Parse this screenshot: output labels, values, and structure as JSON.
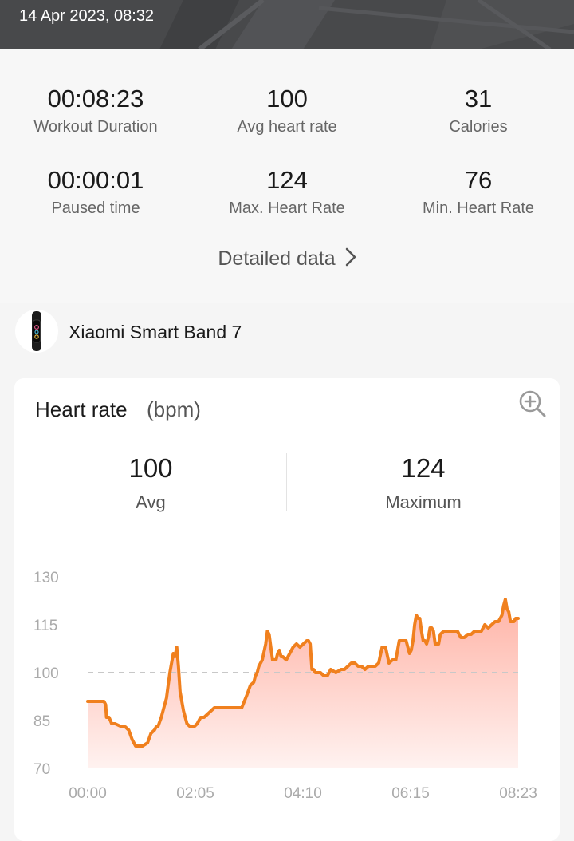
{
  "header": {
    "date": "14 Apr 2023, 08:32"
  },
  "stats": [
    {
      "value": "00:08:23",
      "label": "Workout Duration"
    },
    {
      "value": "100",
      "label": "Avg heart rate"
    },
    {
      "value": "31",
      "label": "Calories"
    },
    {
      "value": "00:00:01",
      "label": "Paused time"
    },
    {
      "value": "124",
      "label": "Max. Heart Rate"
    },
    {
      "value": "76",
      "label": "Min. Heart Rate"
    }
  ],
  "detailed_label": "Detailed data",
  "device": {
    "name": "Xiaomi Smart Band 7",
    "icon": "smart-band-icon"
  },
  "card": {
    "title": "Heart rate",
    "unit": "(bpm)",
    "avg_value": "100",
    "avg_label": "Avg",
    "max_value": "124",
    "max_label": "Maximum"
  },
  "colors": {
    "line": "#f0801e",
    "fill_top": "#ffb3a6",
    "fill_bottom": "#fff2f0",
    "avg_line": "#c8c8c8"
  },
  "chart_data": {
    "type": "area",
    "ylim": [
      70,
      130
    ],
    "yticks": [
      "130",
      "115",
      "100",
      "85",
      "70"
    ],
    "xticks": [
      "00:00",
      "02:05",
      "04:10",
      "06:15",
      "08:23"
    ],
    "x_unit": "seconds",
    "xlim": [
      0,
      503
    ],
    "reference_line": 100,
    "series": [
      {
        "x": [
          0,
          8,
          16,
          19,
          21,
          22,
          25,
          28,
          32,
          40,
          44,
          48,
          52,
          56,
          60,
          64,
          70,
          74,
          78,
          80,
          82,
          86,
          90,
          92,
          94,
          96,
          98,
          100,
          102,
          104,
          106,
          108,
          112,
          116,
          120,
          124,
          128,
          132,
          136,
          140,
          148,
          160,
          172,
          180,
          186,
          190,
          194,
          196,
          198,
          200,
          204,
          208,
          210,
          212,
          214,
          216,
          218,
          220,
          222,
          224,
          226,
          228,
          232,
          236,
          240,
          244,
          248,
          252,
          256,
          258,
          260,
          262,
          264,
          266,
          268,
          272,
          276,
          280,
          284,
          290,
          296,
          300,
          304,
          308,
          312,
          316,
          320,
          324,
          328,
          332,
          336,
          340,
          344,
          348,
          352,
          356,
          360,
          364,
          368,
          372,
          376,
          378,
          380,
          382,
          384,
          386,
          388,
          390,
          392,
          394,
          396,
          398,
          400,
          402,
          404,
          406,
          408,
          410,
          412,
          416,
          420,
          424,
          428,
          432,
          436,
          440,
          444,
          448,
          452,
          456,
          460,
          464,
          468,
          472,
          476,
          480,
          482,
          484,
          486,
          488,
          490,
          492,
          494,
          496,
          498,
          500,
          503
        ],
        "y": [
          91,
          91,
          91,
          91,
          90,
          86,
          86,
          84,
          84,
          83,
          83,
          82,
          79,
          77,
          77,
          77,
          78,
          81,
          82,
          83,
          83,
          86,
          90,
          92,
          96,
          100,
          103,
          106,
          105,
          108,
          102,
          94,
          88,
          84,
          83,
          83,
          84,
          86,
          86,
          87,
          89,
          89,
          89,
          89,
          93,
          96,
          97,
          99,
          100,
          102,
          104,
          109,
          113,
          112,
          108,
          104,
          104,
          104,
          106,
          107,
          105,
          105,
          104,
          106,
          108,
          109,
          108,
          109,
          110,
          110,
          109,
          101,
          101,
          100,
          100,
          100,
          99,
          99,
          101,
          100,
          101,
          101,
          102,
          103,
          103,
          102,
          102,
          101,
          102,
          102,
          102,
          103,
          108,
          108,
          103,
          104,
          104,
          110,
          110,
          110,
          106,
          107,
          110,
          115,
          118,
          117,
          117,
          113,
          110,
          110,
          109,
          111,
          114,
          114,
          113,
          109,
          109,
          109,
          112,
          113,
          113,
          113,
          113,
          113,
          111,
          111,
          112,
          112,
          113,
          113,
          113,
          115,
          114,
          115,
          116,
          116,
          117,
          118,
          121,
          123,
          120,
          119,
          116,
          116,
          116,
          117,
          117
        ]
      }
    ]
  }
}
